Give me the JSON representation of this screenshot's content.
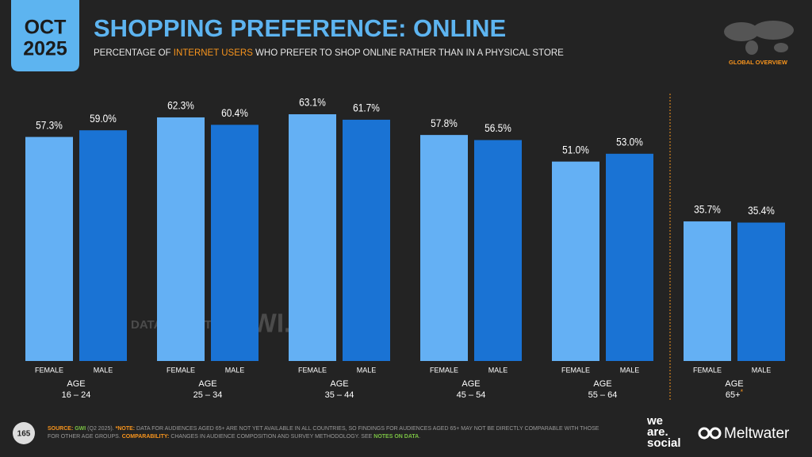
{
  "header": {
    "month": "OCT",
    "year": "2025",
    "section": "GLOBAL OVERVIEW",
    "page_number": "165"
  },
  "chart_data": {
    "type": "bar",
    "title": "SHOPPING PREFERENCE: ONLINE",
    "subtitle": [
      "PERCENTAGE OF ",
      "INTERNET USERS",
      " WHO PREFER TO SHOP ONLINE RATHER THAN IN A PHYSICAL STORE"
    ],
    "subtitle_highlight": 1,
    "category_prefix": "AGE",
    "categories": [
      "16 – 24",
      "25 – 34",
      "35 – 44",
      "45 – 54",
      "55 – 64",
      "65+"
    ],
    "category_note": {
      "index": 5,
      "marker": "*",
      "color": "#f7941d"
    },
    "separator_before": 5,
    "series": [
      {
        "name": "FEMALE",
        "color": "#64b0f4",
        "values": [
          57.3,
          62.3,
          63.1,
          57.8,
          51.0,
          35.7
        ],
        "value_labels": [
          "57.3%",
          "62.3%",
          "63.1%",
          "57.8%",
          "51.0%",
          "35.7%"
        ]
      },
      {
        "name": "MALE",
        "color": "#1a73d4",
        "values": [
          59.0,
          60.4,
          61.7,
          56.5,
          53.0,
          35.4
        ],
        "value_labels": [
          "59.0%",
          "60.4%",
          "61.7%",
          "56.5%",
          "53.0%",
          "35.4%"
        ]
      }
    ],
    "ylim": [
      0,
      70
    ]
  },
  "watermark": {
    "left": "DATAREPORTAL",
    "right": "GWI."
  },
  "footnote": [
    {
      "text": "SOURCE: ",
      "color": "#f7941d"
    },
    {
      "text": "GWI",
      "color": "#7ac143"
    },
    {
      "text": " (Q2 2025). ",
      "color": "#9a9a9a"
    },
    {
      "text": "*NOTE: ",
      "color": "#f7941d"
    },
    {
      "text": "DATA FOR AUDIENCES AGED 65+ ARE NOT YET AVAILABLE IN ALL COUNTRIES, SO FINDINGS FOR AUDIENCES AGED 65+ MAY NOT BE DIRECTLY COMPARABLE WITH THOSE",
      "color": "#9a9a9a"
    }
  ],
  "footnote_line2": [
    {
      "text": "FOR OTHER AGE GROUPS. ",
      "color": "#9a9a9a"
    },
    {
      "text": "COMPARABILITY: ",
      "color": "#f7941d"
    },
    {
      "text": "CHANGES IN AUDIENCE COMPOSITION AND SURVEY METHODOLOGY. SEE ",
      "color": "#9a9a9a"
    },
    {
      "text": "NOTES ON DATA",
      "color": "#7ac143"
    },
    {
      "text": ".",
      "color": "#9a9a9a"
    }
  ],
  "logos": {
    "we": "we",
    "are": "are.",
    "social": "social",
    "meltwater": "Meltwater"
  }
}
